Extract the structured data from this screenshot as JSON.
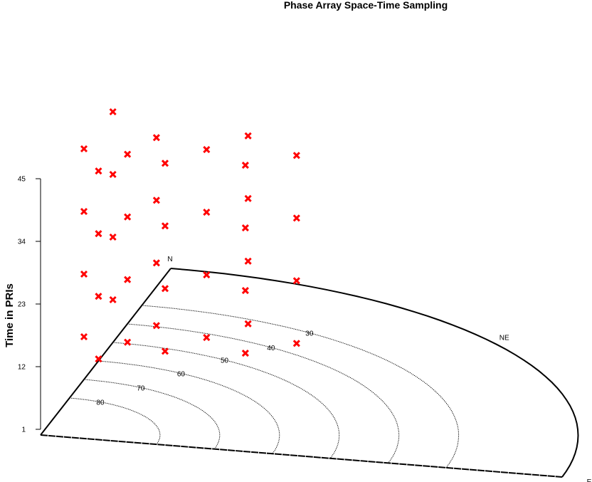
{
  "chart_data": {
    "type": "scatter",
    "title": "Phase Array Space-Time Sampling",
    "ylabel": "Time in PRIs",
    "yticks": [
      "1",
      "12",
      "23",
      "34",
      "45"
    ],
    "ylim": [
      1,
      45
    ],
    "directions": [
      "N",
      "NE",
      "E"
    ],
    "elevation_labels": [
      "30",
      "40",
      "50",
      "60",
      "70",
      "80"
    ],
    "marker": "x",
    "marker_color": "#ff0000",
    "time_layers": [
      {
        "time": 1,
        "points": [
          {
            "az": 0,
            "el": 60
          },
          {
            "az": 15,
            "el": 50
          },
          {
            "az": 15,
            "el": 70
          },
          {
            "az": 15,
            "el": 60
          },
          {
            "az": 30,
            "el": 50
          },
          {
            "az": 30,
            "el": 60
          },
          {
            "az": 30,
            "el": 40
          },
          {
            "az": 45,
            "el": 50
          },
          {
            "az": 45,
            "el": 40
          },
          {
            "az": 0,
            "el": 40
          }
        ]
      },
      {
        "time": 12,
        "points": [
          {
            "az": 0,
            "el": 60
          },
          {
            "az": 15,
            "el": 50
          },
          {
            "az": 15,
            "el": 70
          },
          {
            "az": 15,
            "el": 60
          },
          {
            "az": 30,
            "el": 50
          },
          {
            "az": 30,
            "el": 60
          },
          {
            "az": 30,
            "el": 40
          },
          {
            "az": 45,
            "el": 50
          },
          {
            "az": 45,
            "el": 40
          },
          {
            "az": 0,
            "el": 40
          }
        ]
      },
      {
        "time": 23,
        "points": [
          {
            "az": 0,
            "el": 60
          },
          {
            "az": 15,
            "el": 50
          },
          {
            "az": 15,
            "el": 70
          },
          {
            "az": 15,
            "el": 60
          },
          {
            "az": 30,
            "el": 50
          },
          {
            "az": 30,
            "el": 60
          },
          {
            "az": 30,
            "el": 40
          },
          {
            "az": 45,
            "el": 50
          },
          {
            "az": 45,
            "el": 40
          },
          {
            "az": 0,
            "el": 40
          }
        ]
      },
      {
        "time": 34,
        "points": [
          {
            "az": 0,
            "el": 60
          },
          {
            "az": 15,
            "el": 50
          },
          {
            "az": 15,
            "el": 70
          },
          {
            "az": 15,
            "el": 60
          },
          {
            "az": 30,
            "el": 50
          },
          {
            "az": 30,
            "el": 60
          },
          {
            "az": 30,
            "el": 40
          },
          {
            "az": 45,
            "el": 50
          },
          {
            "az": 45,
            "el": 40
          },
          {
            "az": 0,
            "el": 40
          }
        ]
      }
    ]
  }
}
